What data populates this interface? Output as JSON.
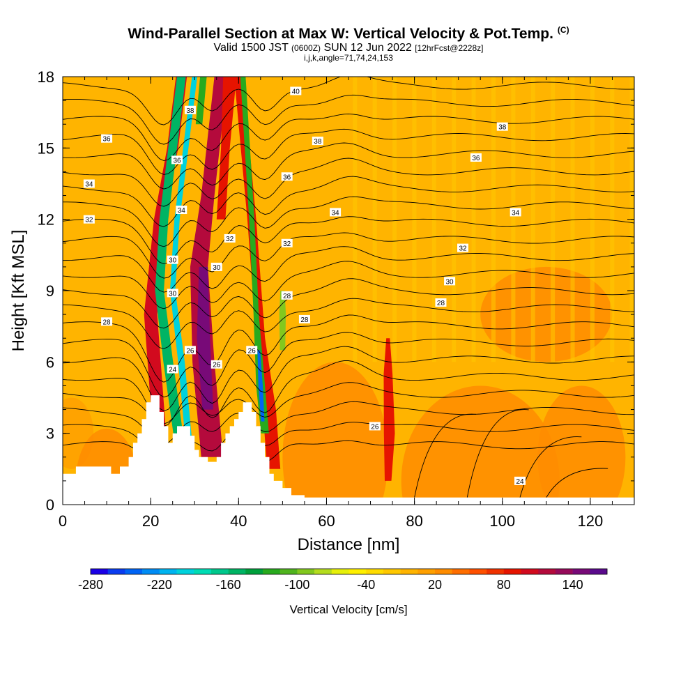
{
  "chart_data": {
    "type": "heatmap",
    "title": "Wind-Parallel Section at Max W: Vertical Velocity & Pot.Temp.",
    "title_tag": "(C)",
    "subtitle": {
      "valid": "Valid 1500 JST",
      "zulu": "(0600Z)",
      "date": "SUN 12 Jun 2022",
      "forecast": "[12hrFcst@2228z]"
    },
    "subtitle2": "i,j,k,angle=71,74,24,153",
    "xlabel": "Distance [nm]",
    "ylabel": "Height [Kft MSL]",
    "xlim": [
      0,
      130
    ],
    "ylim": [
      0,
      18
    ],
    "x_ticks": [
      "0",
      "20",
      "40",
      "60",
      "80",
      "100",
      "120"
    ],
    "y_ticks": [
      "0",
      "3",
      "6",
      "9",
      "12",
      "15",
      "18"
    ],
    "colorbar": {
      "label": "Vertical Velocity [cm/s]",
      "range": [
        -280,
        170
      ],
      "tick_labels": [
        "-280",
        "-220",
        "-160",
        "-100",
        "-40",
        "20",
        "80",
        "140"
      ],
      "colors": [
        "#1a00e6",
        "#0a3cf0",
        "#0064f5",
        "#008cf5",
        "#00b4f0",
        "#00d2dc",
        "#00dcb4",
        "#00c88c",
        "#00b464",
        "#00a03c",
        "#28aa1e",
        "#50b41e",
        "#82c81e",
        "#b4dc1e",
        "#e6f00a",
        "#fff000",
        "#ffdc00",
        "#ffc800",
        "#ffb400",
        "#ffa000",
        "#ff8c00",
        "#ff6e00",
        "#ff5000",
        "#f03200",
        "#e61400",
        "#d20a1e",
        "#b40a3c",
        "#960a5a",
        "#780a78",
        "#5a0a8c"
      ]
    },
    "theta_contour_labels": [
      "40",
      "38",
      "38",
      "38",
      "36",
      "36",
      "36",
      "36",
      "34",
      "34",
      "34",
      "34",
      "32",
      "32",
      "32",
      "32",
      "30",
      "30",
      "30",
      "30",
      "28",
      "28",
      "28",
      "28",
      "26",
      "26",
      "26",
      "26",
      "24",
      "24"
    ],
    "features": [
      {
        "name": "updraft core",
        "x": 32,
        "y_range": [
          3,
          11
        ],
        "w_cm_s": 150
      },
      {
        "name": "updraft band",
        "x": 24,
        "y_range": [
          4,
          18
        ],
        "w_cm_s": 100
      },
      {
        "name": "downdraft band",
        "x": 28,
        "y_range": [
          2,
          18
        ],
        "w_cm_s": -200
      },
      {
        "name": "downdraft band",
        "x": 45,
        "y_range": [
          3,
          7
        ],
        "w_cm_s": -240
      },
      {
        "name": "updraft column",
        "x": 74,
        "y_range": [
          2,
          7
        ],
        "w_cm_s": 90
      }
    ],
    "terrain_peaks_kft": [
      {
        "x": 21,
        "h": 4.5
      },
      {
        "x": 43,
        "h": 4.3
      }
    ],
    "grid": false
  }
}
